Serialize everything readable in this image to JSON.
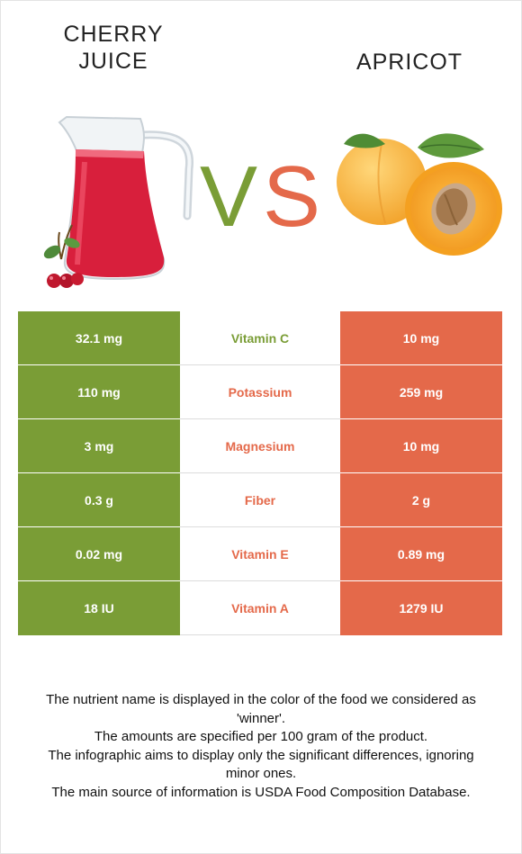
{
  "left_food": {
    "title_line1": "CHERRY",
    "title_line2": "JUICE"
  },
  "right_food": {
    "title": "APRICOT"
  },
  "vs": {
    "v": "V",
    "s": "S"
  },
  "colors": {
    "left_winner": "#7a9d36",
    "right_winner": "#e4694a"
  },
  "nutrients": [
    {
      "name": "Vitamin C",
      "left": "32.1 mg",
      "right": "10 mg",
      "winner": "left"
    },
    {
      "name": "Potassium",
      "left": "110 mg",
      "right": "259 mg",
      "winner": "right"
    },
    {
      "name": "Magnesium",
      "left": "3 mg",
      "right": "10 mg",
      "winner": "right"
    },
    {
      "name": "Fiber",
      "left": "0.3 g",
      "right": "2 g",
      "winner": "right"
    },
    {
      "name": "Vitamin E",
      "left": "0.02 mg",
      "right": "0.89 mg",
      "winner": "right"
    },
    {
      "name": "Vitamin A",
      "left": "18 IU",
      "right": "1279 IU",
      "winner": "right"
    }
  ],
  "notes": [
    "The nutrient name is displayed in the color of the food we considered as 'winner'.",
    "The amounts are specified per 100 gram of the product.",
    "The infographic aims to display only the significant differences, ignoring minor ones.",
    "The main source of information is USDA Food Composition Database."
  ]
}
